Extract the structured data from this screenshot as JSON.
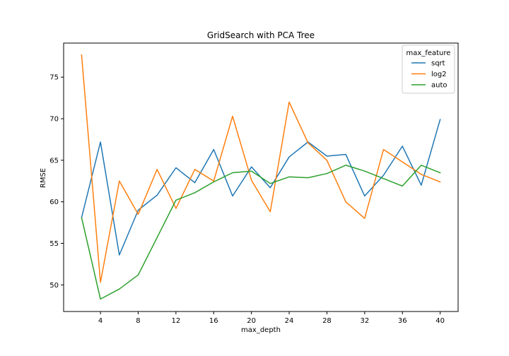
{
  "chart_data": {
    "type": "line",
    "title": "GridSearch with PCA Tree",
    "xlabel": "max_depth",
    "ylabel": "RMSE",
    "x": [
      2,
      4,
      6,
      8,
      10,
      12,
      14,
      16,
      18,
      20,
      22,
      24,
      26,
      28,
      30,
      32,
      34,
      36,
      38,
      40
    ],
    "xticks": [
      4,
      8,
      12,
      16,
      20,
      24,
      28,
      32,
      36,
      40
    ],
    "yticks": [
      50,
      55,
      60,
      65,
      70,
      75
    ],
    "xlim": [
      0.1,
      41.9
    ],
    "ylim": [
      46.8,
      79.1
    ],
    "grid": false,
    "legend": {
      "title": "max_feature",
      "location": "upper right"
    },
    "series": [
      {
        "name": "sqrt",
        "color": "#1f77b4",
        "values": [
          58.1,
          67.2,
          53.6,
          59.0,
          60.8,
          64.1,
          62.3,
          66.3,
          60.7,
          64.2,
          61.7,
          65.4,
          67.2,
          65.5,
          65.7,
          60.7,
          63.2,
          66.7,
          62.0,
          69.9
        ]
      },
      {
        "name": "log2",
        "color": "#ff7f0e",
        "values": [
          77.7,
          50.3,
          62.5,
          58.5,
          63.9,
          59.2,
          63.9,
          62.5,
          70.3,
          62.6,
          58.8,
          72.0,
          67.1,
          65.0,
          60.0,
          58.0,
          66.3,
          64.8,
          63.3,
          62.4
        ]
      },
      {
        "name": "auto",
        "color": "#2ca02c",
        "values": [
          58.1,
          48.3,
          49.5,
          51.2,
          55.7,
          60.2,
          61.1,
          62.4,
          63.5,
          63.7,
          62.2,
          63.0,
          62.9,
          63.4,
          64.4,
          63.7,
          62.8,
          61.9,
          64.4,
          63.5
        ]
      }
    ]
  }
}
